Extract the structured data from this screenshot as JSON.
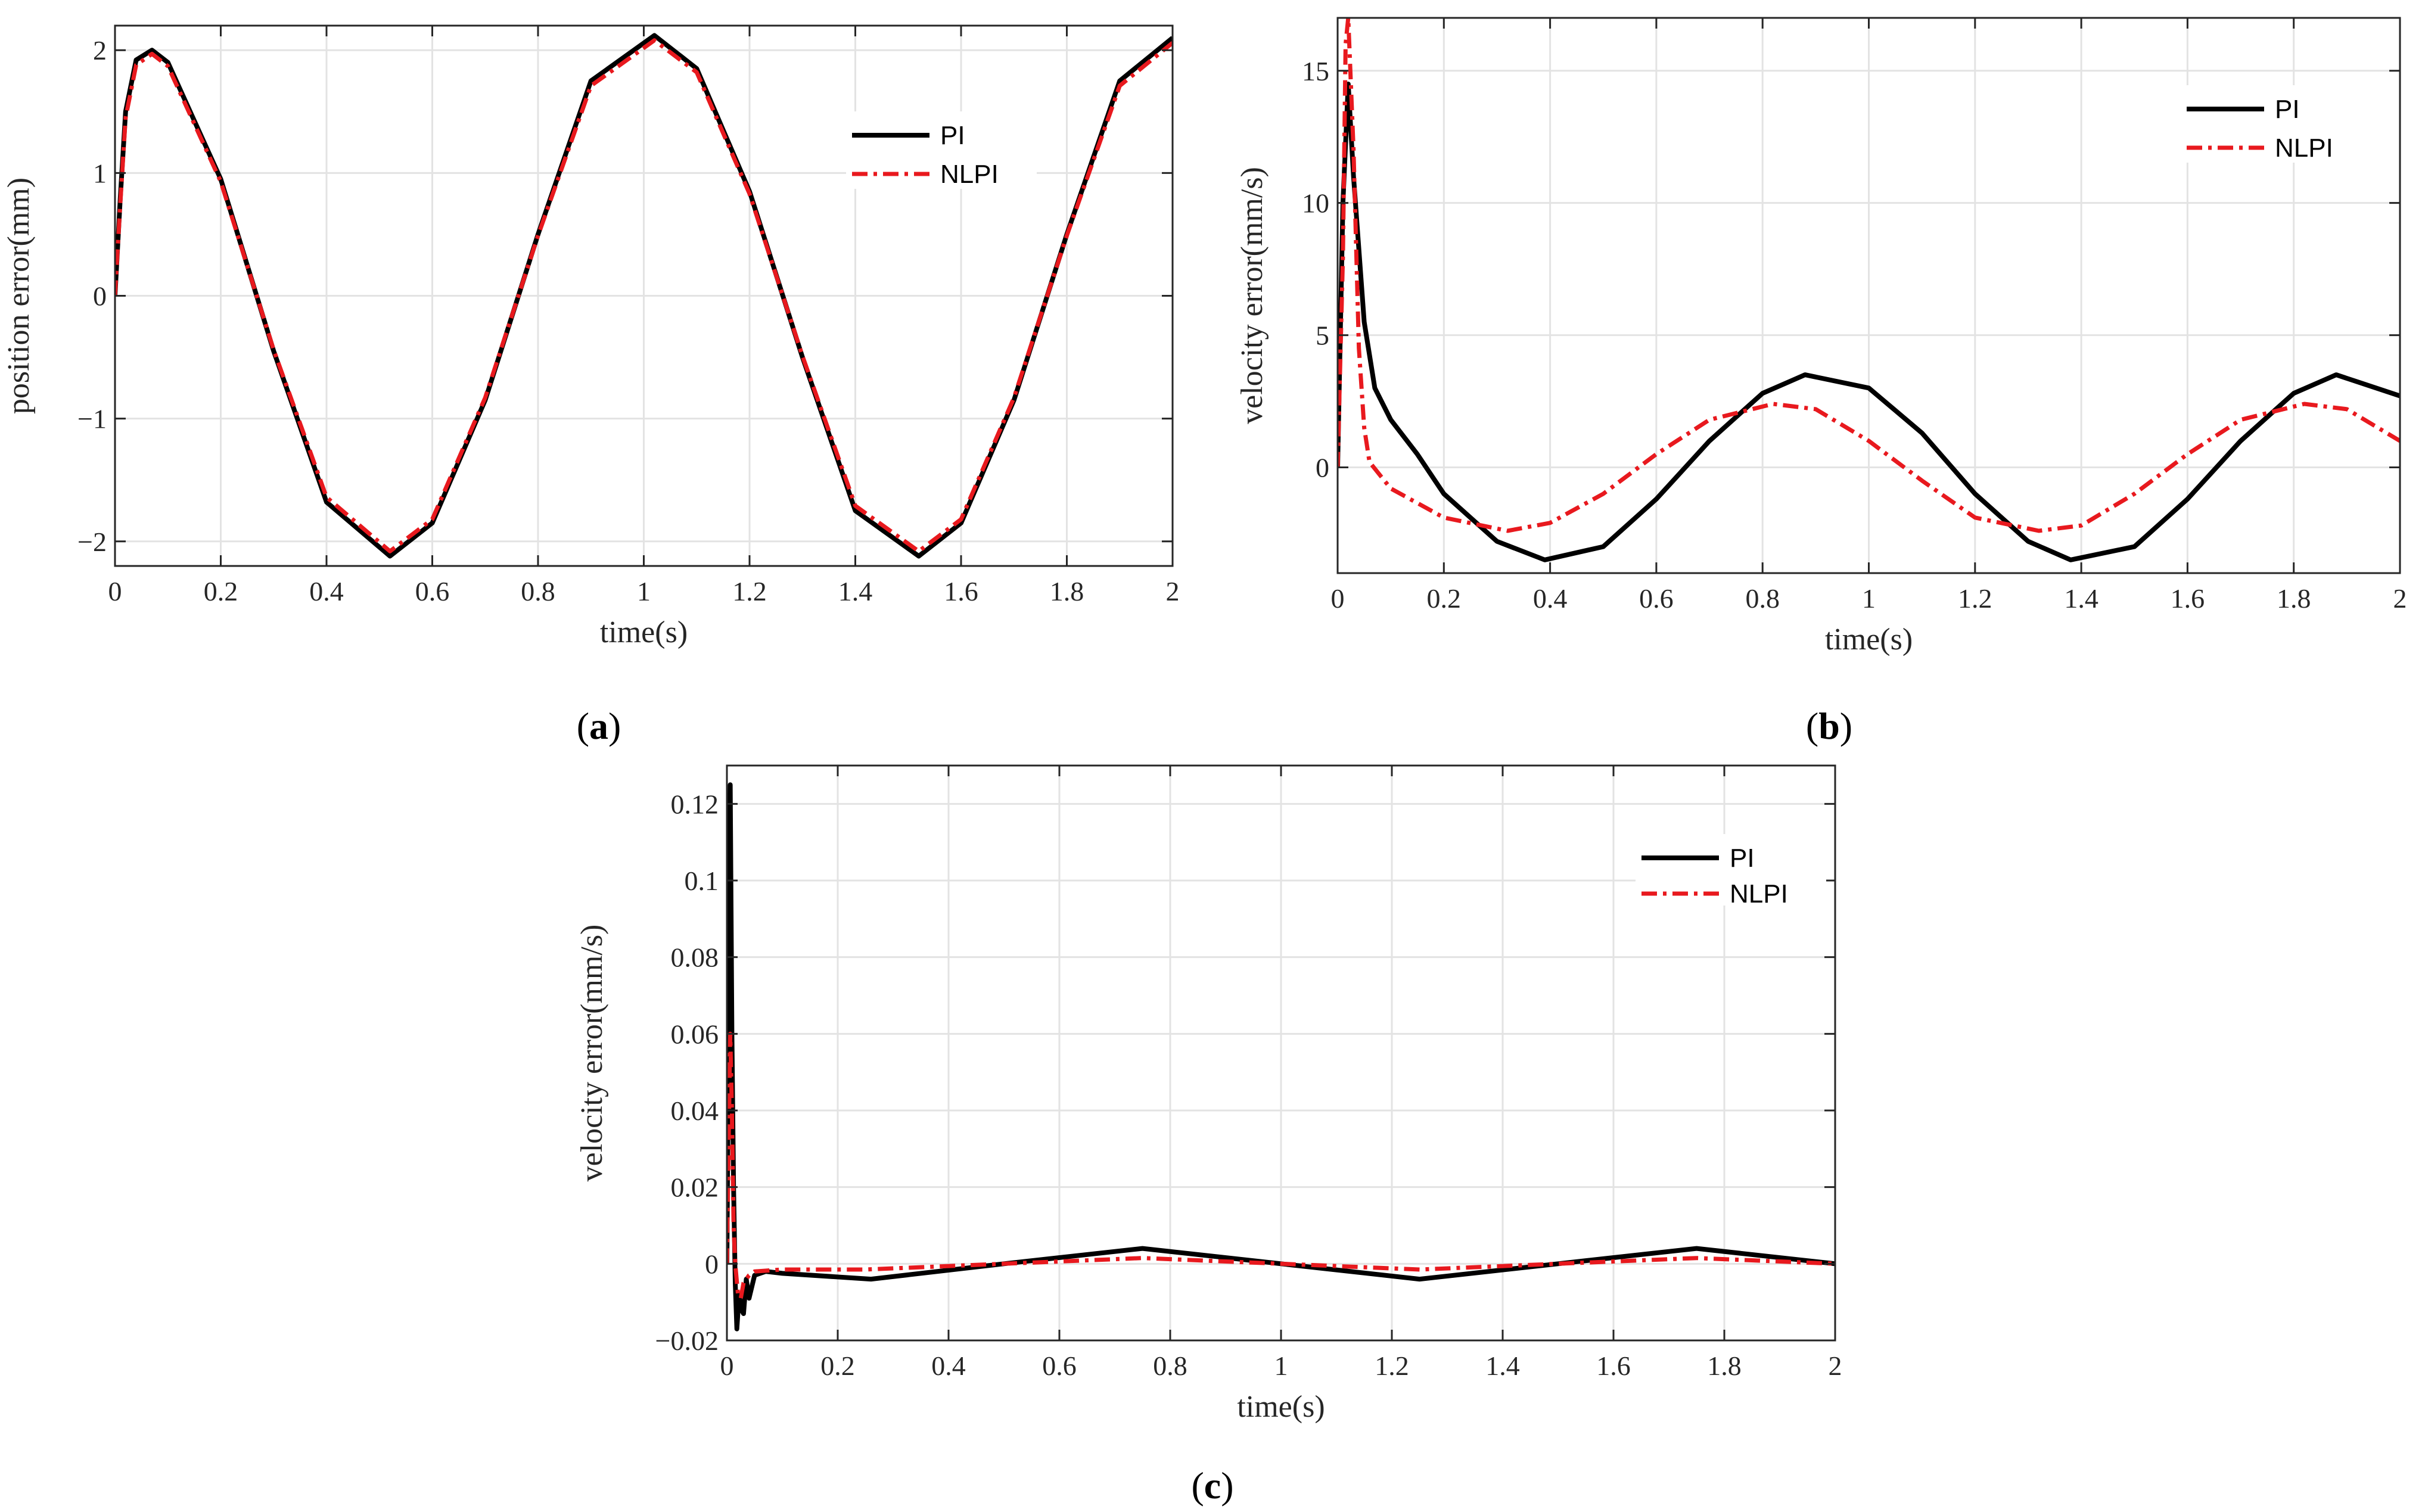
{
  "chart_data": [
    {
      "type": "line",
      "panel": "a",
      "caption_open": "(",
      "caption_letter": "a",
      "caption_close": ")",
      "xlabel": "time(s)",
      "ylabel": "position error(mm)",
      "xlim": [
        0,
        2
      ],
      "ylim": [
        -2.2,
        2.2
      ],
      "xticks": [
        0,
        0.2,
        0.4,
        0.6,
        0.8,
        1,
        1.2,
        1.4,
        1.6,
        1.8,
        2
      ],
      "xtick_labels": [
        "0",
        "0.2",
        "0.4",
        "0.6",
        "0.8",
        "1",
        "1.2",
        "1.4",
        "1.6",
        "1.8",
        "2"
      ],
      "yticks": [
        -2,
        -1,
        0,
        1,
        2
      ],
      "ytick_labels": [
        "−2",
        "−1",
        "0",
        "1",
        "2"
      ],
      "grid": true,
      "legend_position": "top-right",
      "series": [
        {
          "name": "PI",
          "color": "#000000",
          "style": "solid",
          "x": [
            0,
            0.01,
            0.02,
            0.04,
            0.07,
            0.1,
            0.2,
            0.3,
            0.4,
            0.52,
            0.6,
            0.7,
            0.8,
            0.9,
            1.02,
            1.1,
            1.2,
            1.3,
            1.4,
            1.52,
            1.6,
            1.7,
            1.8,
            1.9,
            2.0
          ],
          "y": [
            0,
            0.8,
            1.5,
            1.92,
            2.0,
            1.9,
            0.95,
            -0.45,
            -1.68,
            -2.12,
            -1.85,
            -0.85,
            0.5,
            1.75,
            2.12,
            1.85,
            0.85,
            -0.5,
            -1.75,
            -2.12,
            -1.85,
            -0.85,
            0.5,
            1.75,
            2.1
          ]
        },
        {
          "name": "NLPI",
          "color": "#e8191e",
          "style": "dashdot",
          "x": [
            0,
            0.01,
            0.02,
            0.04,
            0.07,
            0.1,
            0.2,
            0.3,
            0.4,
            0.52,
            0.6,
            0.7,
            0.8,
            0.9,
            1.02,
            1.1,
            1.2,
            1.3,
            1.4,
            1.52,
            1.6,
            1.7,
            1.8,
            1.9,
            2.0
          ],
          "y": [
            0,
            0.75,
            1.45,
            1.88,
            1.97,
            1.87,
            0.93,
            -0.44,
            -1.64,
            -2.08,
            -1.82,
            -0.83,
            0.49,
            1.71,
            2.08,
            1.82,
            0.83,
            -0.49,
            -1.71,
            -2.08,
            -1.82,
            -0.83,
            0.49,
            1.71,
            2.06
          ]
        }
      ]
    },
    {
      "type": "line",
      "panel": "b",
      "caption_open": "(",
      "caption_letter": "b",
      "caption_close": ")",
      "xlabel": "time(s)",
      "ylabel": "velocity error(mm/s)",
      "xlim": [
        0,
        2
      ],
      "ylim": [
        -4,
        17
      ],
      "xticks": [
        0,
        0.2,
        0.4,
        0.6,
        0.8,
        1,
        1.2,
        1.4,
        1.6,
        1.8,
        2
      ],
      "xtick_labels": [
        "0",
        "0.2",
        "0.4",
        "0.6",
        "0.8",
        "1",
        "1.2",
        "1.4",
        "1.6",
        "1.8",
        "2"
      ],
      "yticks": [
        0,
        5,
        10,
        15
      ],
      "ytick_labels": [
        "0",
        "5",
        "10",
        "15"
      ],
      "grid": true,
      "legend_position": "top-right",
      "series": [
        {
          "name": "PI",
          "color": "#000000",
          "style": "solid",
          "x": [
            0,
            0.01,
            0.02,
            0.03,
            0.05,
            0.07,
            0.1,
            0.15,
            0.2,
            0.3,
            0.39,
            0.5,
            0.6,
            0.7,
            0.8,
            0.88,
            1.0,
            1.1,
            1.2,
            1.3,
            1.38,
            1.5,
            1.6,
            1.7,
            1.8,
            1.88,
            2.0
          ],
          "y": [
            0,
            10,
            14.5,
            11,
            5.5,
            3,
            1.8,
            0.5,
            -1.0,
            -2.8,
            -3.5,
            -3.0,
            -1.2,
            1.0,
            2.8,
            3.5,
            3.0,
            1.3,
            -1.0,
            -2.8,
            -3.5,
            -3.0,
            -1.2,
            1.0,
            2.8,
            3.5,
            2.7
          ]
        },
        {
          "name": "NLPI",
          "color": "#e8191e",
          "style": "dashdot",
          "x": [
            0,
            0.01,
            0.015,
            0.02,
            0.03,
            0.04,
            0.05,
            0.06,
            0.08,
            0.1,
            0.2,
            0.32,
            0.4,
            0.5,
            0.6,
            0.7,
            0.82,
            0.9,
            1.0,
            1.1,
            1.2,
            1.32,
            1.4,
            1.5,
            1.6,
            1.7,
            1.82,
            1.9,
            2.0
          ],
          "y": [
            0,
            8,
            16,
            17,
            12,
            4.5,
            1.5,
            0.2,
            -0.3,
            -0.8,
            -1.9,
            -2.4,
            -2.1,
            -1.0,
            0.5,
            1.8,
            2.4,
            2.2,
            1.0,
            -0.5,
            -1.9,
            -2.4,
            -2.2,
            -1.0,
            0.5,
            1.8,
            2.4,
            2.2,
            1.0
          ]
        }
      ]
    },
    {
      "type": "line",
      "panel": "c",
      "caption_open": "(",
      "caption_letter": "c",
      "caption_close": ")",
      "xlabel": "time(s)",
      "ylabel": "velocity error(mm/s)",
      "xlim": [
        0,
        2
      ],
      "ylim": [
        -0.02,
        0.13
      ],
      "xticks": [
        0,
        0.2,
        0.4,
        0.6,
        0.8,
        1,
        1.2,
        1.4,
        1.6,
        1.8,
        2
      ],
      "xtick_labels": [
        "0",
        "0.2",
        "0.4",
        "0.6",
        "0.8",
        "1",
        "1.2",
        "1.4",
        "1.6",
        "1.8",
        "2"
      ],
      "yticks": [
        -0.02,
        0,
        0.02,
        0.04,
        0.06,
        0.08,
        0.1,
        0.12
      ],
      "ytick_labels": [
        "−0.02",
        "0",
        "0.02",
        "0.04",
        "0.06",
        "0.08",
        "0.1",
        "0.12"
      ],
      "grid": true,
      "legend_position": "top-right",
      "series": [
        {
          "name": "PI",
          "color": "#000000",
          "style": "solid",
          "x": [
            0,
            0.003,
            0.006,
            0.009,
            0.012,
            0.015,
            0.018,
            0.022,
            0.026,
            0.03,
            0.035,
            0.04,
            0.05,
            0.07,
            0.1,
            0.26,
            0.5,
            0.75,
            1.0,
            1.25,
            1.5,
            1.75,
            2.0
          ],
          "y": [
            0,
            0.06,
            0.125,
            0.06,
            0.02,
            -0.005,
            -0.017,
            -0.008,
            -0.012,
            -0.013,
            -0.004,
            -0.009,
            -0.003,
            -0.002,
            -0.0025,
            -0.004,
            0,
            0.004,
            0,
            -0.004,
            0,
            0.004,
            0
          ]
        },
        {
          "name": "NLPI",
          "color": "#e8191e",
          "style": "dashdot",
          "x": [
            0,
            0.003,
            0.006,
            0.009,
            0.012,
            0.015,
            0.02,
            0.025,
            0.03,
            0.04,
            0.05,
            0.1,
            0.25,
            0.5,
            0.75,
            1.0,
            1.25,
            1.5,
            1.75,
            2.0
          ],
          "y": [
            0,
            0.03,
            0.06,
            0.04,
            0.01,
            0.0,
            -0.008,
            -0.009,
            -0.005,
            -0.003,
            -0.002,
            -0.0015,
            -0.0015,
            0,
            0.0015,
            0,
            -0.0015,
            0,
            0.0015,
            0
          ]
        }
      ]
    }
  ]
}
